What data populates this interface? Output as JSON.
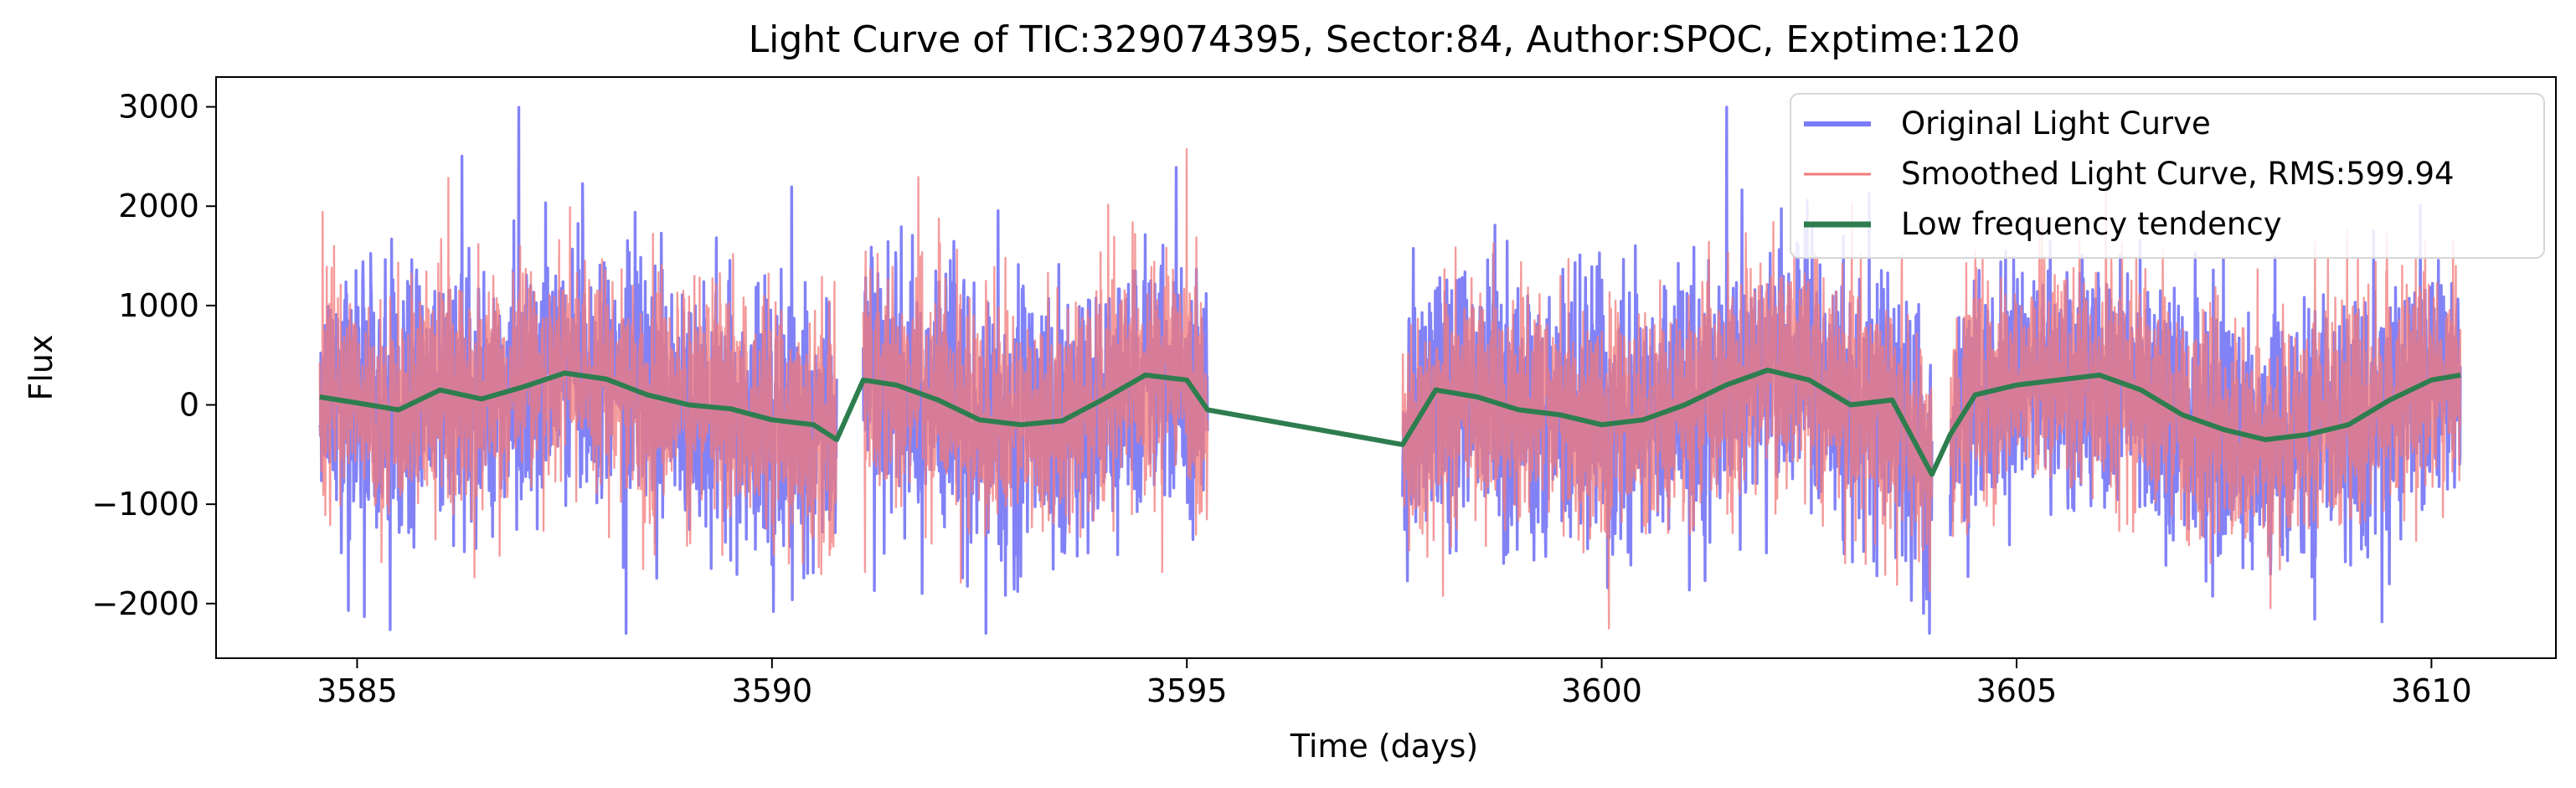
{
  "chart_data": {
    "type": "line",
    "title": "Light Curve of TIC:329074395, Sector:84, Author:SPOC, Exptime:120",
    "xlabel": "Time (days)",
    "ylabel": "Flux",
    "xlim": [
      3583.3,
      3611.5
    ],
    "ylim": [
      -2550,
      3300
    ],
    "xticks": [
      3585,
      3590,
      3595,
      3600,
      3605,
      3610
    ],
    "xtick_labels": [
      "3585",
      "3590",
      "3595",
      "3600",
      "3605",
      "3610"
    ],
    "yticks": [
      -2000,
      -1000,
      0,
      1000,
      2000,
      3000
    ],
    "ytick_labels": [
      "−2000",
      "−1000",
      "0",
      "1000",
      "2000",
      "3000"
    ],
    "grid": false,
    "legend_position": "top-right",
    "data_segments": [
      [
        3584.55,
        3590.78
      ],
      [
        3591.1,
        3595.25
      ],
      [
        3597.6,
        3603.98
      ],
      [
        3604.2,
        3610.35
      ]
    ],
    "series": [
      {
        "name": "Original Light Curve",
        "color": "#7b7bf7",
        "noise_rms": 650,
        "peak_range": [
          -2300,
          3050
        ]
      },
      {
        "name": "Smoothed Light Curve, RMS:599.94",
        "color": "#f27a7a",
        "noise_rms": 600,
        "peak_range": [
          -2250,
          3000
        ]
      },
      {
        "name": "Low frequency tendency",
        "color": "#2e7d4f",
        "x": [
          3584.55,
          3585.0,
          3585.5,
          3586.0,
          3586.5,
          3587.0,
          3587.5,
          3588.0,
          3588.5,
          3589.0,
          3589.5,
          3590.0,
          3590.5,
          3590.78,
          3591.1,
          3591.5,
          3592.0,
          3592.5,
          3593.0,
          3593.5,
          3594.0,
          3594.5,
          3595.0,
          3595.25,
          3597.6,
          3598.0,
          3598.5,
          3599.0,
          3599.5,
          3600.0,
          3600.5,
          3601.0,
          3601.5,
          3602.0,
          3602.5,
          3603.0,
          3603.5,
          3603.98,
          3604.2,
          3604.5,
          3605.0,
          3605.5,
          3606.0,
          3606.5,
          3607.0,
          3607.5,
          3608.0,
          3608.5,
          3609.0,
          3609.5,
          3610.0,
          3610.35
        ],
        "y": [
          80,
          20,
          -50,
          150,
          60,
          180,
          320,
          260,
          100,
          0,
          -40,
          -150,
          -200,
          -350,
          250,
          200,
          50,
          -150,
          -200,
          -160,
          60,
          300,
          250,
          -50,
          -400,
          150,
          80,
          -50,
          -100,
          -200,
          -150,
          0,
          200,
          350,
          250,
          0,
          50,
          -700,
          -300,
          100,
          200,
          250,
          300,
          150,
          -100,
          -250,
          -350,
          -300,
          -200,
          50,
          250,
          300
        ]
      }
    ]
  }
}
